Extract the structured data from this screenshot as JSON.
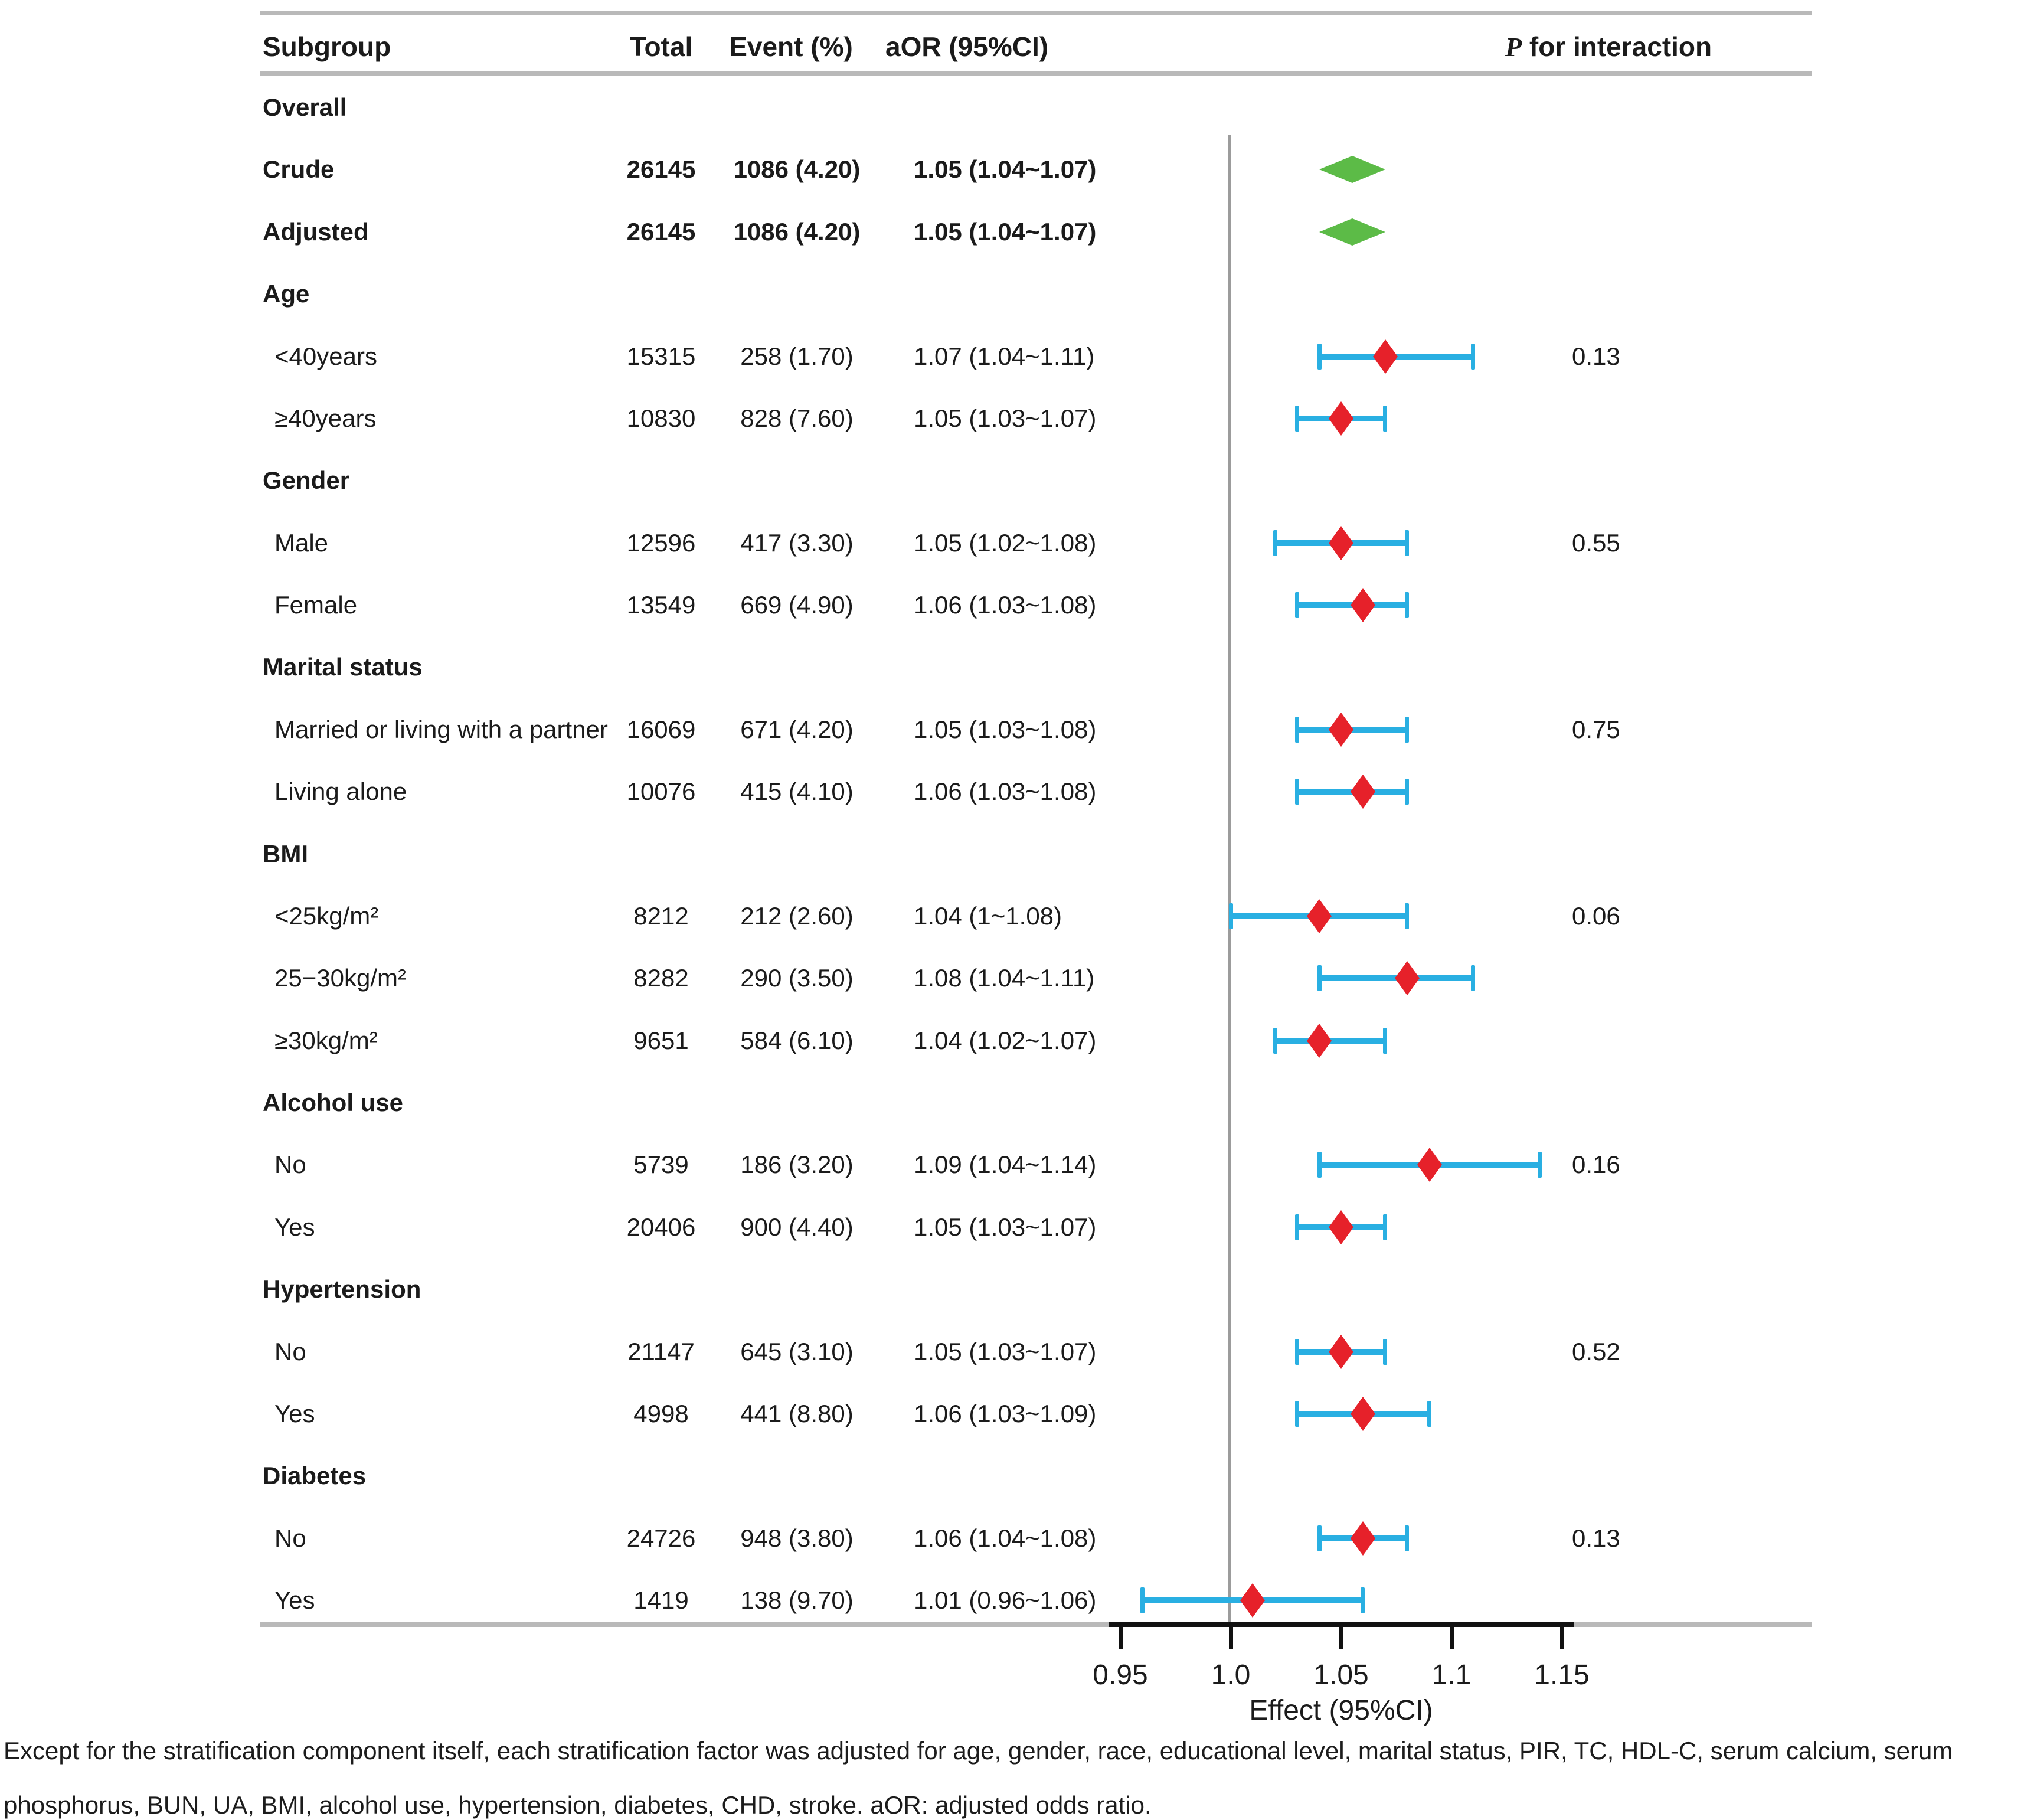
{
  "figure": {
    "header": {
      "subgroup": "Subgroup",
      "total": "Total",
      "event": "Event (%)",
      "aor": "aOR (95%CI)",
      "p_italic": "P",
      "p_rest": " for interaction"
    },
    "footnote": "Except for the stratification component itself, each stratification factor was adjusted for age, gender, race, educational level, marital status, PIR, TC, HDL-C, serum calcium, serum phosphorus, BUN, UA, BMI, alcohol use, hypertension, diabetes, CHD, stroke. aOR: adjusted odds ratio."
  },
  "colors": {
    "point_red": "#E6212A",
    "ci_blue": "#29AFE2",
    "summary_green": "#5CBB47",
    "rule_gray": "#B9B9B9",
    "ref_line_gray": "#9C9C9C",
    "axis_black": "#111111"
  },
  "chart_data": {
    "type": "forest",
    "xlabel": "Effect (95%CI)",
    "ref_line": 1.0,
    "xlim": [
      0.93,
      1.17
    ],
    "ticks": [
      {
        "value": 0.95,
        "label": "0.95"
      },
      {
        "value": 1.0,
        "label": "1.0"
      },
      {
        "value": 1.05,
        "label": "1.05"
      },
      {
        "value": 1.1,
        "label": "1.1"
      },
      {
        "value": 1.15,
        "label": "1.15"
      }
    ],
    "rows": [
      {
        "kind": "group",
        "label": "Overall"
      },
      {
        "kind": "summary",
        "label": "Crude",
        "total": "26145",
        "event": "1086 (4.20)",
        "aor": "1.05 (1.04~1.07)",
        "est": 1.05,
        "lo": 1.04,
        "hi": 1.07
      },
      {
        "kind": "summary",
        "label": "Adjusted",
        "total": "26145",
        "event": "1086 (4.20)",
        "aor": "1.05 (1.04~1.07)",
        "est": 1.05,
        "lo": 1.04,
        "hi": 1.07
      },
      {
        "kind": "group",
        "label": "Age"
      },
      {
        "kind": "item",
        "label": "<40years",
        "total": "15315",
        "event": "258 (1.70)",
        "aor": "1.07 (1.04~1.11)",
        "est": 1.07,
        "lo": 1.04,
        "hi": 1.11,
        "p": "0.13"
      },
      {
        "kind": "item",
        "label": "≥40years",
        "total": "10830",
        "event": "828 (7.60)",
        "aor": "1.05 (1.03~1.07)",
        "est": 1.05,
        "lo": 1.03,
        "hi": 1.07
      },
      {
        "kind": "group",
        "label": "Gender"
      },
      {
        "kind": "item",
        "label": "Male",
        "total": "12596",
        "event": "417 (3.30)",
        "aor": "1.05 (1.02~1.08)",
        "est": 1.05,
        "lo": 1.02,
        "hi": 1.08,
        "p": "0.55"
      },
      {
        "kind": "item",
        "label": "Female",
        "total": "13549",
        "event": "669 (4.90)",
        "aor": "1.06 (1.03~1.08)",
        "est": 1.06,
        "lo": 1.03,
        "hi": 1.08
      },
      {
        "kind": "group",
        "label": "Marital status"
      },
      {
        "kind": "item",
        "label": "Married or living with a partner",
        "total": "16069",
        "event": "671 (4.20)",
        "aor": "1.05 (1.03~1.08)",
        "est": 1.05,
        "lo": 1.03,
        "hi": 1.08,
        "p": "0.75"
      },
      {
        "kind": "item",
        "label": "Living alone",
        "total": "10076",
        "event": "415 (4.10)",
        "aor": "1.06 (1.03~1.08)",
        "est": 1.06,
        "lo": 1.03,
        "hi": 1.08
      },
      {
        "kind": "group",
        "label": "BMI"
      },
      {
        "kind": "item",
        "label": "<25kg/m²",
        "total": "8212",
        "event": "212 (2.60)",
        "aor": "1.04 (1~1.08)",
        "est": 1.04,
        "lo": 1.0,
        "hi": 1.08,
        "p": "0.06"
      },
      {
        "kind": "item",
        "label": "25−30kg/m²",
        "total": "8282",
        "event": "290 (3.50)",
        "aor": "1.08 (1.04~1.11)",
        "est": 1.08,
        "lo": 1.04,
        "hi": 1.11
      },
      {
        "kind": "item",
        "label": "≥30kg/m²",
        "total": "9651",
        "event": "584 (6.10)",
        "aor": "1.04 (1.02~1.07)",
        "est": 1.04,
        "lo": 1.02,
        "hi": 1.07
      },
      {
        "kind": "group",
        "label": "Alcohol use"
      },
      {
        "kind": "item",
        "label": "No",
        "total": "5739",
        "event": "186 (3.20)",
        "aor": "1.09 (1.04~1.14)",
        "est": 1.09,
        "lo": 1.04,
        "hi": 1.14,
        "p": "0.16"
      },
      {
        "kind": "item",
        "label": "Yes",
        "total": "20406",
        "event": "900 (4.40)",
        "aor": "1.05 (1.03~1.07)",
        "est": 1.05,
        "lo": 1.03,
        "hi": 1.07
      },
      {
        "kind": "group",
        "label": "Hypertension"
      },
      {
        "kind": "item",
        "label": "No",
        "total": "21147",
        "event": "645 (3.10)",
        "aor": "1.05 (1.03~1.07)",
        "est": 1.05,
        "lo": 1.03,
        "hi": 1.07,
        "p": "0.52"
      },
      {
        "kind": "item",
        "label": "Yes",
        "total": "4998",
        "event": "441 (8.80)",
        "aor": "1.06 (1.03~1.09)",
        "est": 1.06,
        "lo": 1.03,
        "hi": 1.09
      },
      {
        "kind": "group",
        "label": "Diabetes"
      },
      {
        "kind": "item",
        "label": "No",
        "total": "24726",
        "event": "948 (3.80)",
        "aor": "1.06 (1.04~1.08)",
        "est": 1.06,
        "lo": 1.04,
        "hi": 1.08,
        "p": "0.13"
      },
      {
        "kind": "item",
        "label": "Yes",
        "total": "1419",
        "event": "138 (9.70)",
        "aor": "1.01 (0.96~1.06)",
        "est": 1.01,
        "lo": 0.96,
        "hi": 1.06
      }
    ]
  }
}
